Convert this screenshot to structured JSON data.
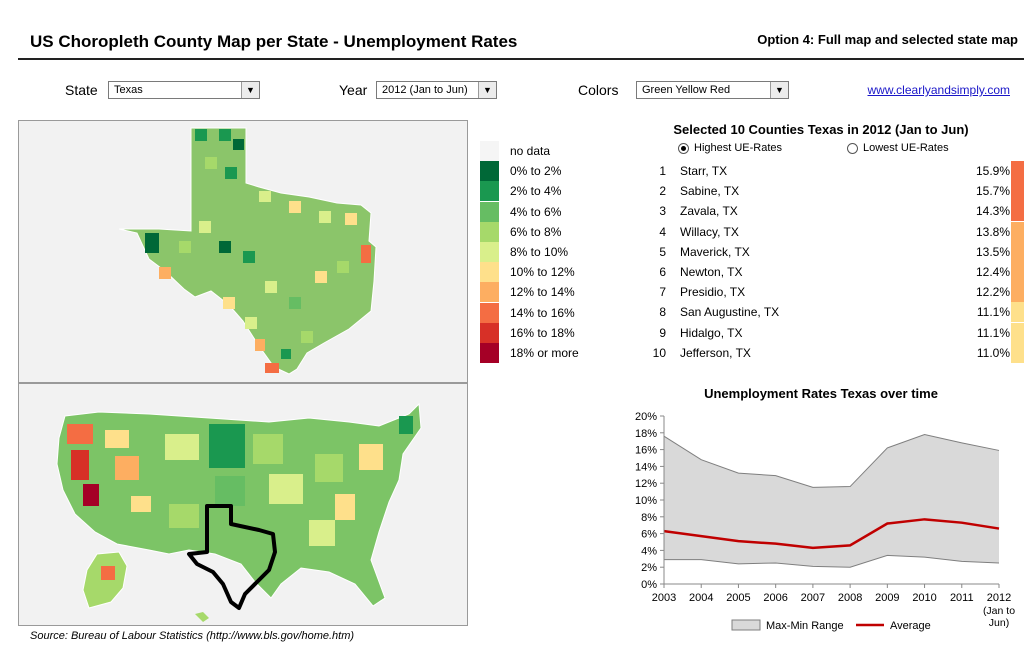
{
  "header": {
    "title": "US Choropleth County Map per State - Unemployment Rates",
    "option": "Option 4: Full map and selected state map"
  },
  "controls": {
    "state_label": "State",
    "state_value": "Texas",
    "year_label": "Year",
    "year_value": "2012 (Jan to Jun)",
    "colors_label": "Colors",
    "colors_value": "Green Yellow Red",
    "link": "www.clearlyandsimply.com"
  },
  "legend": [
    {
      "label": "no data",
      "color": "#f5f5f5"
    },
    {
      "label": "0%  to 2%",
      "color": "#006837"
    },
    {
      "label": "2% to 4%",
      "color": "#1a9850"
    },
    {
      "label": "4% to 6%",
      "color": "#66bd63"
    },
    {
      "label": "6% to 8%",
      "color": "#a6d96a"
    },
    {
      "label": "8% to 10%",
      "color": "#d9ef8b"
    },
    {
      "label": "10% to 12%",
      "color": "#fee08b"
    },
    {
      "label": "12% to 14%",
      "color": "#fdae61"
    },
    {
      "label": "14% to 16%",
      "color": "#f46d43"
    },
    {
      "label": "16% to 18%",
      "color": "#d73027"
    },
    {
      "label": "18% or more",
      "color": "#a50026"
    }
  ],
  "selection": {
    "title": "Selected 10 Counties Texas in 2012 (Jan to Jun)",
    "radio_high": "Highest UE-Rates",
    "radio_low": "Lowest UE-Rates",
    "counties": [
      {
        "rank": "1",
        "name": "Starr, TX",
        "value": "15.9%",
        "color": "#f46d43"
      },
      {
        "rank": "2",
        "name": "Sabine, TX",
        "value": "15.7%",
        "color": "#f46d43"
      },
      {
        "rank": "3",
        "name": "Zavala, TX",
        "value": "14.3%",
        "color": "#f46d43"
      },
      {
        "rank": "4",
        "name": "Willacy, TX",
        "value": "13.8%",
        "color": "#fdae61"
      },
      {
        "rank": "5",
        "name": "Maverick, TX",
        "value": "13.5%",
        "color": "#fdae61"
      },
      {
        "rank": "6",
        "name": "Newton, TX",
        "value": "12.4%",
        "color": "#fdae61"
      },
      {
        "rank": "7",
        "name": "Presidio, TX",
        "value": "12.2%",
        "color": "#fdae61"
      },
      {
        "rank": "8",
        "name": "San Augustine, TX",
        "value": "11.1%",
        "color": "#fee08b"
      },
      {
        "rank": "9",
        "name": "Hidalgo, TX",
        "value": "11.1%",
        "color": "#fee08b"
      },
      {
        "rank": "10",
        "name": "Jefferson, TX",
        "value": "11.0%",
        "color": "#fee08b"
      }
    ]
  },
  "chart_data": {
    "type": "area",
    "title": "Unemployment Rates Texas over time",
    "x": [
      "2003",
      "2004",
      "2005",
      "2006",
      "2007",
      "2008",
      "2009",
      "2010",
      "2011",
      "2012"
    ],
    "x_last_sub": [
      "(Jan to",
      "Jun)"
    ],
    "series": [
      {
        "name": "Max-Min Range",
        "kind": "range",
        "max": [
          17.6,
          14.8,
          13.2,
          12.9,
          11.5,
          11.6,
          16.2,
          17.8,
          16.8,
          15.9
        ],
        "min": [
          2.9,
          2.9,
          2.4,
          2.5,
          2.1,
          2.0,
          3.4,
          3.2,
          2.7,
          2.5
        ]
      },
      {
        "name": "Average",
        "kind": "line",
        "values": [
          6.3,
          5.7,
          5.1,
          4.8,
          4.3,
          4.6,
          7.2,
          7.7,
          7.3,
          6.6
        ]
      }
    ],
    "yticks": [
      "0%",
      "2%",
      "4%",
      "6%",
      "8%",
      "10%",
      "12%",
      "14%",
      "16%",
      "18%",
      "20%"
    ],
    "ylim": [
      0,
      20
    ],
    "legend_position": "bottom",
    "colors": {
      "range_fill": "#d9d9d9",
      "range_edge": "#7f7f7f",
      "line": "#c00000"
    }
  },
  "footer": {
    "source": "Source: Bureau of Labour Statistics (http://www.bls.gov/home.htm)"
  }
}
